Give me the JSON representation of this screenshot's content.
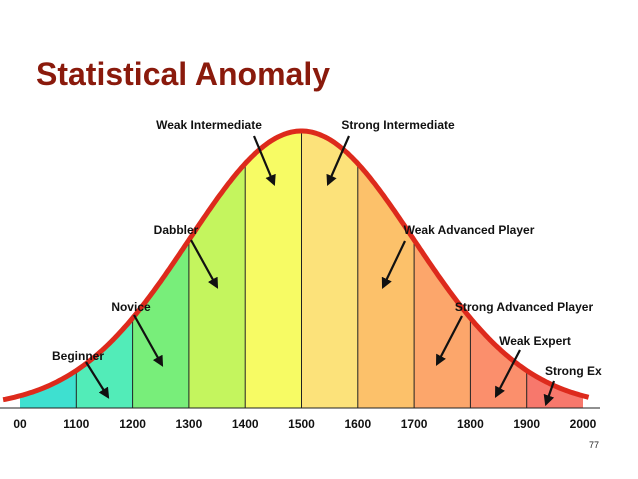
{
  "slide": {
    "title": "Statistical Anomaly",
    "page_number": "77"
  },
  "chart_data": {
    "type": "area",
    "title": "",
    "xlabel": "",
    "ylabel": "",
    "xlim": [
      1000,
      2000
    ],
    "tick_labels": [
      "00",
      "1100",
      "1200",
      "1300",
      "1400",
      "1500",
      "1600",
      "1700",
      "1800",
      "1900",
      "2000"
    ],
    "distribution": {
      "shape": "normal",
      "mean": 1500,
      "sd": 200
    },
    "curve_color": "#dd2a1c",
    "bands": [
      {
        "from": 1000,
        "to": 1100,
        "color": "#3ee0d0"
      },
      {
        "from": 1100,
        "to": 1200,
        "color": "#52ecb8"
      },
      {
        "from": 1200,
        "to": 1300,
        "color": "#78ee7a"
      },
      {
        "from": 1300,
        "to": 1400,
        "color": "#c4f55e"
      },
      {
        "from": 1400,
        "to": 1500,
        "color": "#f7fb64"
      },
      {
        "from": 1500,
        "to": 1600,
        "color": "#fce27a"
      },
      {
        "from": 1600,
        "to": 1700,
        "color": "#fcc16a"
      },
      {
        "from": 1700,
        "to": 1800,
        "color": "#fca66b"
      },
      {
        "from": 1800,
        "to": 1900,
        "color": "#fb8f6c"
      },
      {
        "from": 1900,
        "to": 2000,
        "color": "#f7786c"
      }
    ],
    "annotations": [
      {
        "text": "Beginner",
        "x": 1150
      },
      {
        "text": "Novice",
        "x": 1250
      },
      {
        "text": "Dabbler",
        "x": 1350
      },
      {
        "text": "Weak Intermediate",
        "x": 1450
      },
      {
        "text": "Strong Intermediate",
        "x": 1550
      },
      {
        "text": "Weak Advanced Player",
        "x": 1650
      },
      {
        "text": "Strong Advanced Player",
        "x": 1750
      },
      {
        "text": "Weak Expert",
        "x": 1850
      },
      {
        "text": "Strong Ex",
        "x": 1950
      }
    ]
  }
}
